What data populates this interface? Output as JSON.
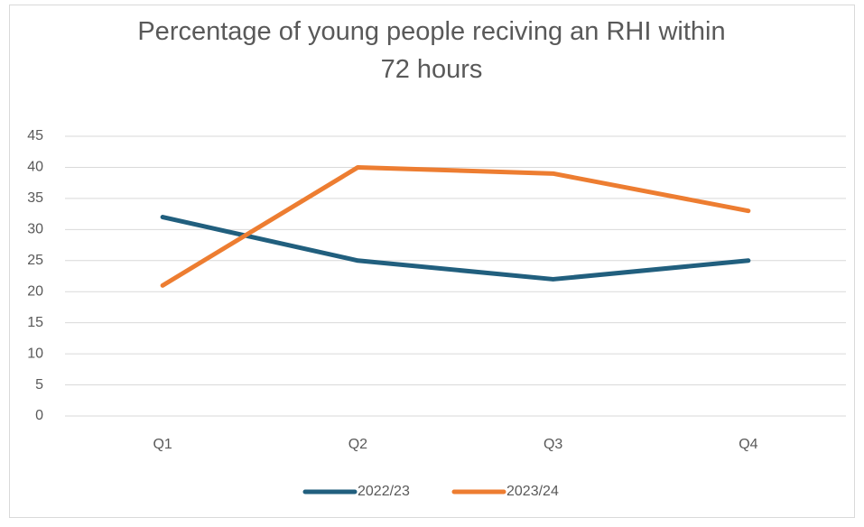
{
  "chart_data": {
    "type": "line",
    "title": "Percentage of young people reciving an RHI within 72 hours",
    "categories": [
      "Q1",
      "Q2",
      "Q3",
      "Q4"
    ],
    "series": [
      {
        "name": "2022/23",
        "color": "#215f7e",
        "values": [
          32,
          25,
          22,
          25
        ]
      },
      {
        "name": "2023/24",
        "color": "#ed7d31",
        "values": [
          21,
          40,
          39,
          33
        ]
      }
    ],
    "ylim": [
      0,
      45
    ],
    "yticks": [
      0,
      5,
      10,
      15,
      20,
      25,
      30,
      35,
      40,
      45
    ],
    "grid": true,
    "legend": "bottom"
  }
}
